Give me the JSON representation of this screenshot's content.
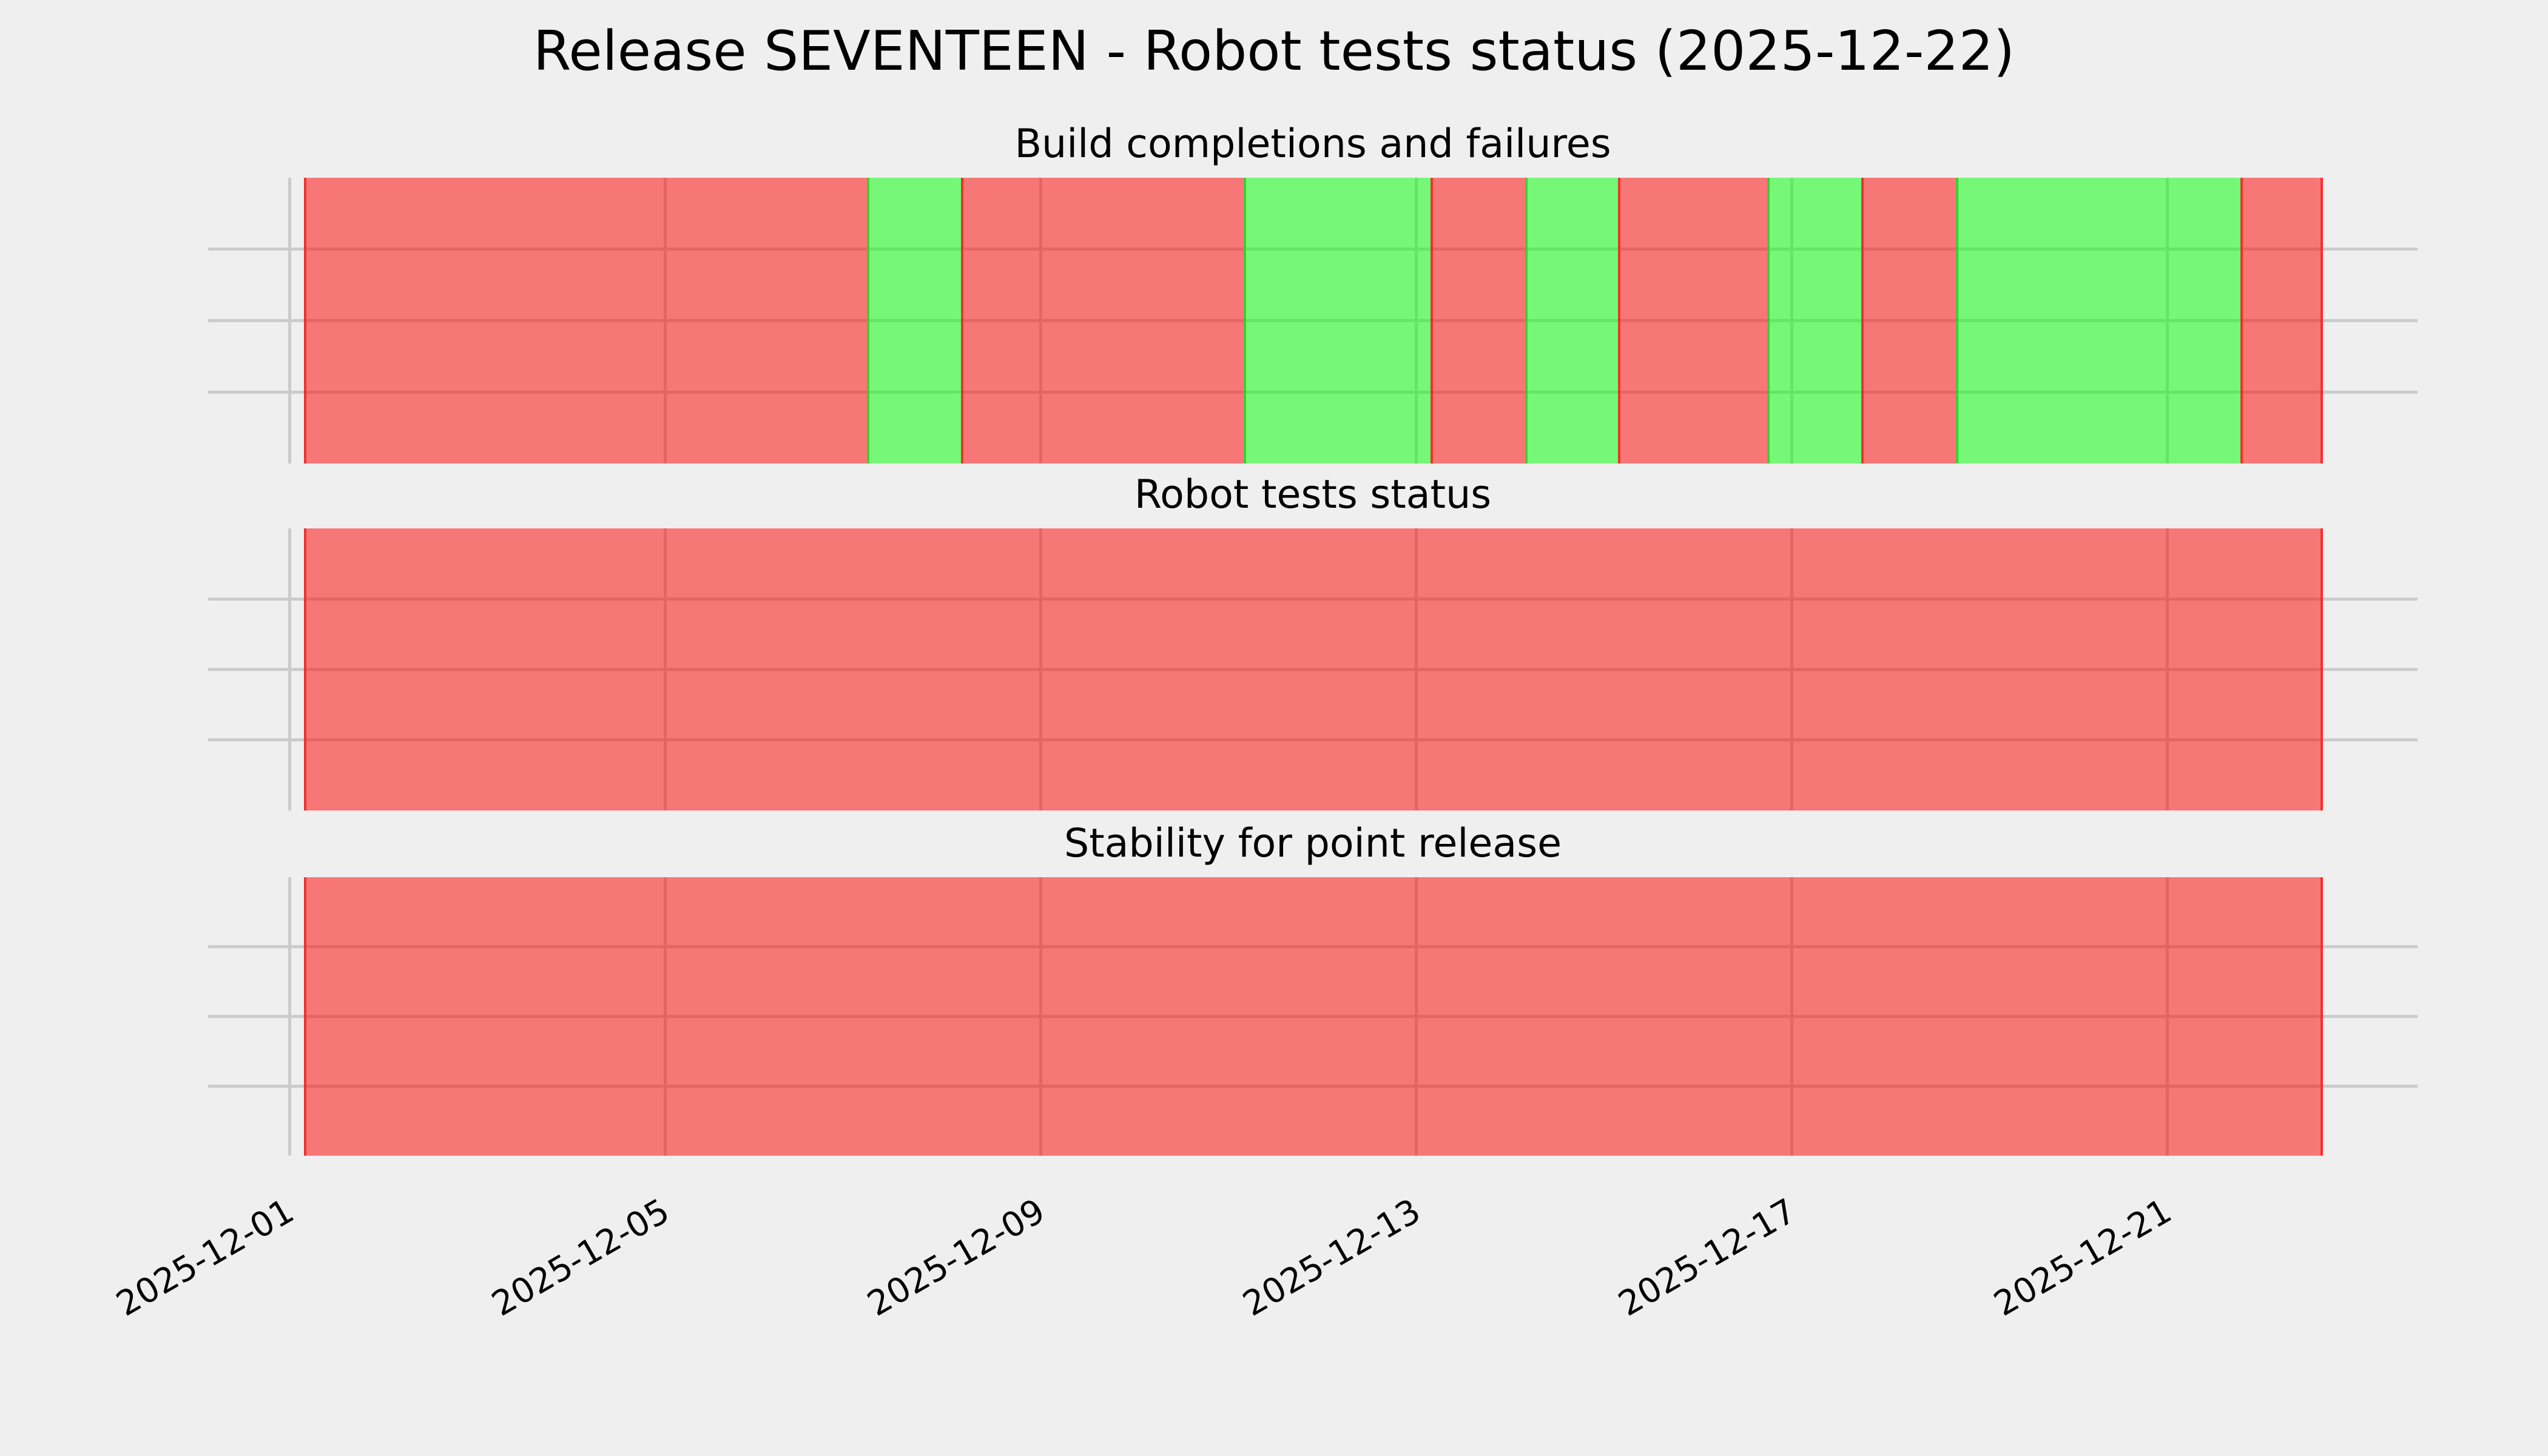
{
  "figure": {
    "title": "Release SEVENTEEN - Robot tests status (2025-12-22)",
    "background_color": "#EFEFEF",
    "grid_color": "#CBCBCB",
    "status_colors": {
      "fail_fill": "rgba(255,0,0,0.5)",
      "pass_fill": "rgba(0,255,0,0.5)",
      "fail_edge": "rgba(240,40,40,0.9)",
      "pass_edge": "rgba(40,210,40,0.9)"
    }
  },
  "x_axis": {
    "start_date": "2025-12-01",
    "tick_labels": [
      "2025-12-01",
      "2025-12-05",
      "2025-12-09",
      "2025-12-13",
      "2025-12-17",
      "2025-12-21"
    ],
    "tick_day_offsets": [
      0,
      4,
      8,
      12,
      16,
      20
    ],
    "label_rotation_deg": 30
  },
  "chart_data": [
    {
      "type": "bar",
      "subtype": "status-timeline",
      "title": "Build completions and failures",
      "unit": "days after 2025-12-01 00:00",
      "xlim": [
        -0.93,
        22.76
      ],
      "ylim": [
        0,
        1
      ],
      "grid": true,
      "y_gridlines": [
        0.25,
        0.5,
        0.75
      ],
      "segments": [
        {
          "start_day": 0.15,
          "end_day": 6.15,
          "status": "fail"
        },
        {
          "start_day": 6.15,
          "end_day": 7.15,
          "status": "pass"
        },
        {
          "start_day": 7.15,
          "end_day": 10.16,
          "status": "fail"
        },
        {
          "start_day": 10.16,
          "end_day": 12.15,
          "status": "pass"
        },
        {
          "start_day": 12.15,
          "end_day": 13.16,
          "status": "fail"
        },
        {
          "start_day": 13.16,
          "end_day": 14.15,
          "status": "pass"
        },
        {
          "start_day": 14.15,
          "end_day": 15.74,
          "status": "fail"
        },
        {
          "start_day": 15.74,
          "end_day": 16.74,
          "status": "pass"
        },
        {
          "start_day": 16.74,
          "end_day": 17.75,
          "status": "fail"
        },
        {
          "start_day": 17.75,
          "end_day": 20.78,
          "status": "pass"
        },
        {
          "start_day": 20.78,
          "end_day": 21.66,
          "status": "fail"
        }
      ]
    },
    {
      "type": "bar",
      "subtype": "status-timeline",
      "title": "Robot tests status",
      "unit": "days after 2025-12-01 00:00",
      "xlim": [
        -0.93,
        22.76
      ],
      "ylim": [
        0,
        1
      ],
      "grid": true,
      "y_gridlines": [
        0.25,
        0.5,
        0.75
      ],
      "segments": [
        {
          "start_day": 0.15,
          "end_day": 21.66,
          "status": "fail"
        }
      ]
    },
    {
      "type": "bar",
      "subtype": "status-timeline",
      "title": "Stability for point release",
      "unit": "days after 2025-12-01 00:00",
      "xlim": [
        -0.93,
        22.76
      ],
      "ylim": [
        0,
        1
      ],
      "grid": true,
      "y_gridlines": [
        0.25,
        0.5,
        0.75
      ],
      "segments": [
        {
          "start_day": 0.15,
          "end_day": 21.66,
          "status": "fail"
        }
      ]
    }
  ]
}
